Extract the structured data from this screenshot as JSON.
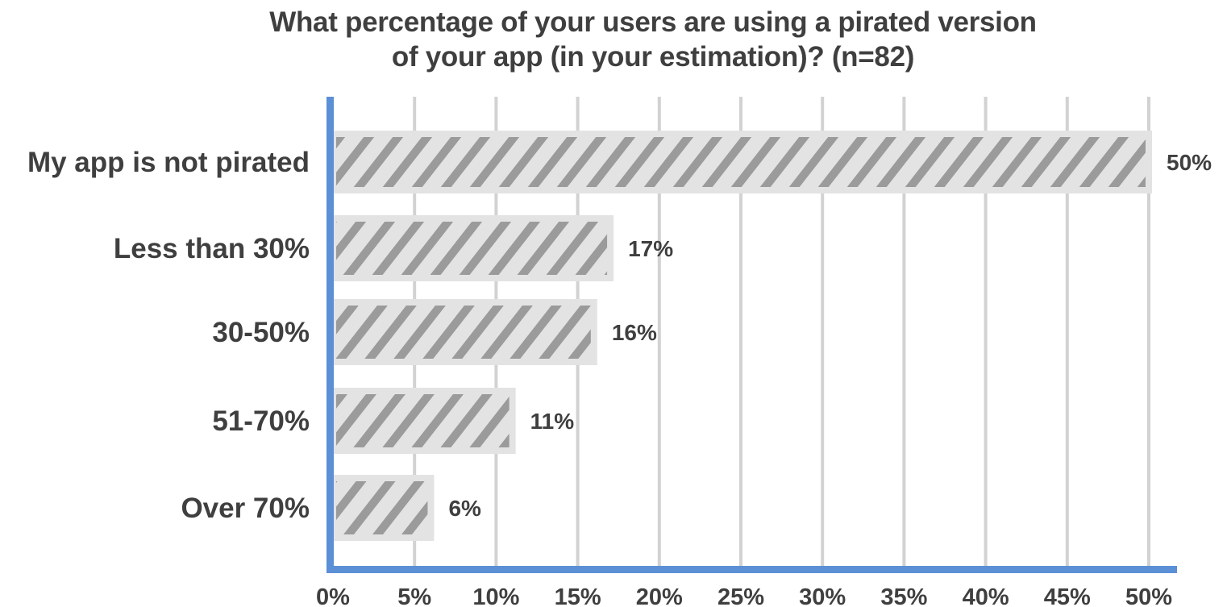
{
  "chart_data": {
    "type": "bar",
    "orientation": "horizontal",
    "title_lines": [
      "What percentage of your users are using a pirated version",
      "of your app (in your estimation)? (n=82)"
    ],
    "categories": [
      "My app is not pirated",
      "Less than 30%",
      "30-50%",
      "51-70%",
      "Over 70%"
    ],
    "values": [
      50,
      17,
      16,
      11,
      6
    ],
    "value_labels": [
      "50%",
      "17%",
      "16%",
      "11%",
      "6%"
    ],
    "xlim": [
      0,
      50
    ],
    "x_ticks": [
      0,
      5,
      10,
      15,
      20,
      25,
      30,
      35,
      40,
      45,
      50
    ],
    "x_tick_labels": [
      "0%",
      "5%",
      "10%",
      "15%",
      "20%",
      "25%",
      "30%",
      "35%",
      "40%",
      "45%",
      "50%"
    ],
    "grid": "vertical",
    "bar_fill": "hatched",
    "colors": {
      "bar_background": "#e3e3e3",
      "bar_hatch": "#9b9b9b",
      "axis": "#5b8fd6",
      "grid": "#d2d2d2",
      "text": "#3f3f3f"
    }
  }
}
